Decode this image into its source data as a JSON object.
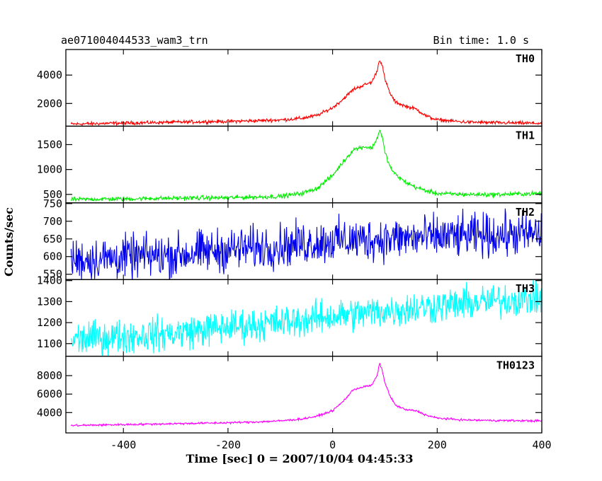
{
  "header": {
    "file_title": "ae071004044533_wam3_trn",
    "bin_time": "Bin time: 1.0 s"
  },
  "chart_data": {
    "type": "line",
    "xlabel": "Time [sec] 0 = 2007/10/04 04:45:33",
    "ylabel": "Counts/sec",
    "xlim": [
      -510,
      400
    ],
    "x_ticks": [
      -400,
      -200,
      0,
      200,
      400
    ],
    "grid": false,
    "panels": [
      {
        "name": "TH0",
        "color": "#ff0000",
        "ylim": [
          400,
          5800
        ],
        "y_ticks": [
          2000,
          4000
        ],
        "noise": 60,
        "points": [
          [
            -500,
            550
          ],
          [
            -400,
            620
          ],
          [
            -300,
            680
          ],
          [
            -200,
            740
          ],
          [
            -150,
            780
          ],
          [
            -100,
            840
          ],
          [
            -60,
            950
          ],
          [
            -30,
            1150
          ],
          [
            0,
            1700
          ],
          [
            20,
            2300
          ],
          [
            40,
            3000
          ],
          [
            60,
            3300
          ],
          [
            75,
            3500
          ],
          [
            85,
            4300
          ],
          [
            90,
            5100
          ],
          [
            95,
            4700
          ],
          [
            100,
            3700
          ],
          [
            110,
            2700
          ],
          [
            120,
            2100
          ],
          [
            140,
            1800
          ],
          [
            160,
            1600
          ],
          [
            180,
            1100
          ],
          [
            200,
            850
          ],
          [
            250,
            700
          ],
          [
            300,
            650
          ],
          [
            400,
            600
          ]
        ]
      },
      {
        "name": "TH1",
        "color": "#00ee00",
        "ylim": [
          330,
          1870
        ],
        "y_ticks": [
          500,
          1000,
          1500
        ],
        "noise": 22,
        "points": [
          [
            -500,
            400
          ],
          [
            -400,
            410
          ],
          [
            -300,
            425
          ],
          [
            -200,
            435
          ],
          [
            -150,
            445
          ],
          [
            -100,
            460
          ],
          [
            -60,
            520
          ],
          [
            -30,
            620
          ],
          [
            0,
            880
          ],
          [
            20,
            1150
          ],
          [
            40,
            1400
          ],
          [
            60,
            1460
          ],
          [
            75,
            1430
          ],
          [
            85,
            1620
          ],
          [
            90,
            1800
          ],
          [
            95,
            1650
          ],
          [
            100,
            1350
          ],
          [
            110,
            1050
          ],
          [
            120,
            900
          ],
          [
            140,
            740
          ],
          [
            160,
            640
          ],
          [
            180,
            570
          ],
          [
            200,
            520
          ],
          [
            250,
            500
          ],
          [
            300,
            495
          ],
          [
            400,
            520
          ]
        ]
      },
      {
        "name": "TH2",
        "color": "#0000ee",
        "ylim": [
          535,
          752
        ],
        "y_ticks": [
          550,
          600,
          650,
          700,
          750
        ],
        "noise": 30,
        "points": [
          [
            -500,
            590
          ],
          [
            -300,
            605
          ],
          [
            -200,
            620
          ],
          [
            -100,
            630
          ],
          [
            0,
            645
          ],
          [
            100,
            650
          ],
          [
            200,
            655
          ],
          [
            300,
            660
          ],
          [
            400,
            665
          ]
        ]
      },
      {
        "name": "TH3",
        "color": "#00ffff",
        "ylim": [
          1040,
          1405
        ],
        "y_ticks": [
          1100,
          1200,
          1300,
          1400
        ],
        "noise": 40,
        "points": [
          [
            -500,
            1120
          ],
          [
            -300,
            1150
          ],
          [
            -200,
            1180
          ],
          [
            -100,
            1200
          ],
          [
            0,
            1230
          ],
          [
            100,
            1255
          ],
          [
            200,
            1280
          ],
          [
            300,
            1300
          ],
          [
            400,
            1320
          ]
        ]
      },
      {
        "name": "TH0123",
        "color": "#ff00ff",
        "ylim": [
          1800,
          10100
        ],
        "y_ticks": [
          4000,
          6000,
          8000
        ],
        "noise": 55,
        "points": [
          [
            -500,
            2600
          ],
          [
            -400,
            2700
          ],
          [
            -300,
            2800
          ],
          [
            -200,
            2900
          ],
          [
            -150,
            2980
          ],
          [
            -100,
            3100
          ],
          [
            -60,
            3300
          ],
          [
            -30,
            3600
          ],
          [
            0,
            4200
          ],
          [
            20,
            5200
          ],
          [
            40,
            6500
          ],
          [
            60,
            6800
          ],
          [
            75,
            6950
          ],
          [
            85,
            8000
          ],
          [
            90,
            9300
          ],
          [
            95,
            8600
          ],
          [
            100,
            7200
          ],
          [
            110,
            5800
          ],
          [
            120,
            4800
          ],
          [
            140,
            4300
          ],
          [
            160,
            4200
          ],
          [
            180,
            3700
          ],
          [
            200,
            3400
          ],
          [
            250,
            3200
          ],
          [
            300,
            3150
          ],
          [
            400,
            3100
          ]
        ]
      }
    ]
  }
}
